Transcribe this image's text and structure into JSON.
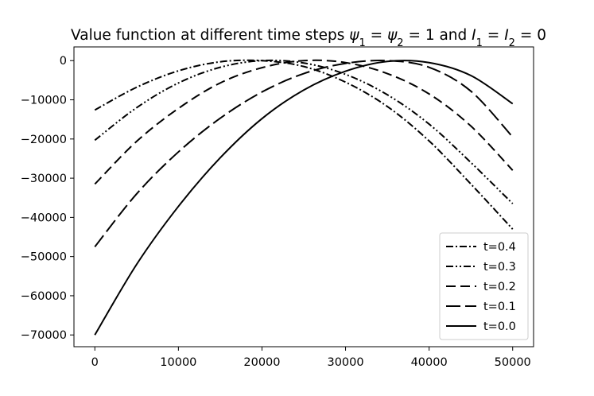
{
  "chart_data": {
    "type": "line",
    "title": "Value function at different time steps ψ1 = ψ2 = 1 and I1 = I2 = 0",
    "title_parts": {
      "prefix": "Value function at different time steps ",
      "psi": "ψ",
      "sub1": "1",
      "sub2": "2",
      "eq1": " = ",
      "eq2": " = 1 and ",
      "I": "I",
      "eq3": " = ",
      "eq4": " = 0"
    },
    "xlabel": "",
    "ylabel": "",
    "xlim": [
      -2500,
      52500
    ],
    "ylim": [
      -73000,
      3500
    ],
    "x_ticks": [
      0,
      10000,
      20000,
      30000,
      40000,
      50000
    ],
    "x_tick_labels": [
      "0",
      "10000",
      "20000",
      "30000",
      "40000",
      "50000"
    ],
    "y_ticks": [
      0,
      -10000,
      -20000,
      -30000,
      -40000,
      -50000,
      -60000,
      -70000
    ],
    "y_tick_labels": [
      "0",
      "−10000",
      "−20000",
      "−30000",
      "−40000",
      "−50000",
      "−60000",
      "−70000"
    ],
    "grid": false,
    "legend_position": "lower-right",
    "x": [
      0,
      5000,
      10000,
      15000,
      20000,
      25000,
      30000,
      35000,
      40000,
      45000,
      50000
    ],
    "series": [
      {
        "name": "t=0.4",
        "linestyle": "dashdot",
        "color": "#000000",
        "values": [
          -12600,
          -6800,
          -2600,
          -300,
          0,
          -1500,
          -5500,
          -11700,
          -20500,
          -31500,
          -43000
        ]
      },
      {
        "name": "t=0.3",
        "linestyle": "dashdotdot",
        "color": "#000000",
        "values": [
          -20300,
          -12000,
          -5700,
          -1700,
          0,
          -600,
          -3500,
          -8700,
          -16200,
          -26000,
          -36500
        ]
      },
      {
        "name": "t=0.2",
        "linestyle": "dashed",
        "color": "#000000",
        "values": [
          -31500,
          -20600,
          -12200,
          -5700,
          -1800,
          0,
          -500,
          -3300,
          -8500,
          -16700,
          -28000
        ]
      },
      {
        "name": "t=0.1",
        "linestyle": "longdash",
        "color": "#000000",
        "values": [
          -47500,
          -34000,
          -23300,
          -14700,
          -8000,
          -3300,
          -700,
          0,
          -1700,
          -7800,
          -19500
        ]
      },
      {
        "name": "t=0.0",
        "linestyle": "solid",
        "color": "#000000",
        "values": [
          -70000,
          -52000,
          -37200,
          -24800,
          -14800,
          -7500,
          -2700,
          -200,
          -500,
          -3800,
          -11000
        ]
      }
    ]
  }
}
